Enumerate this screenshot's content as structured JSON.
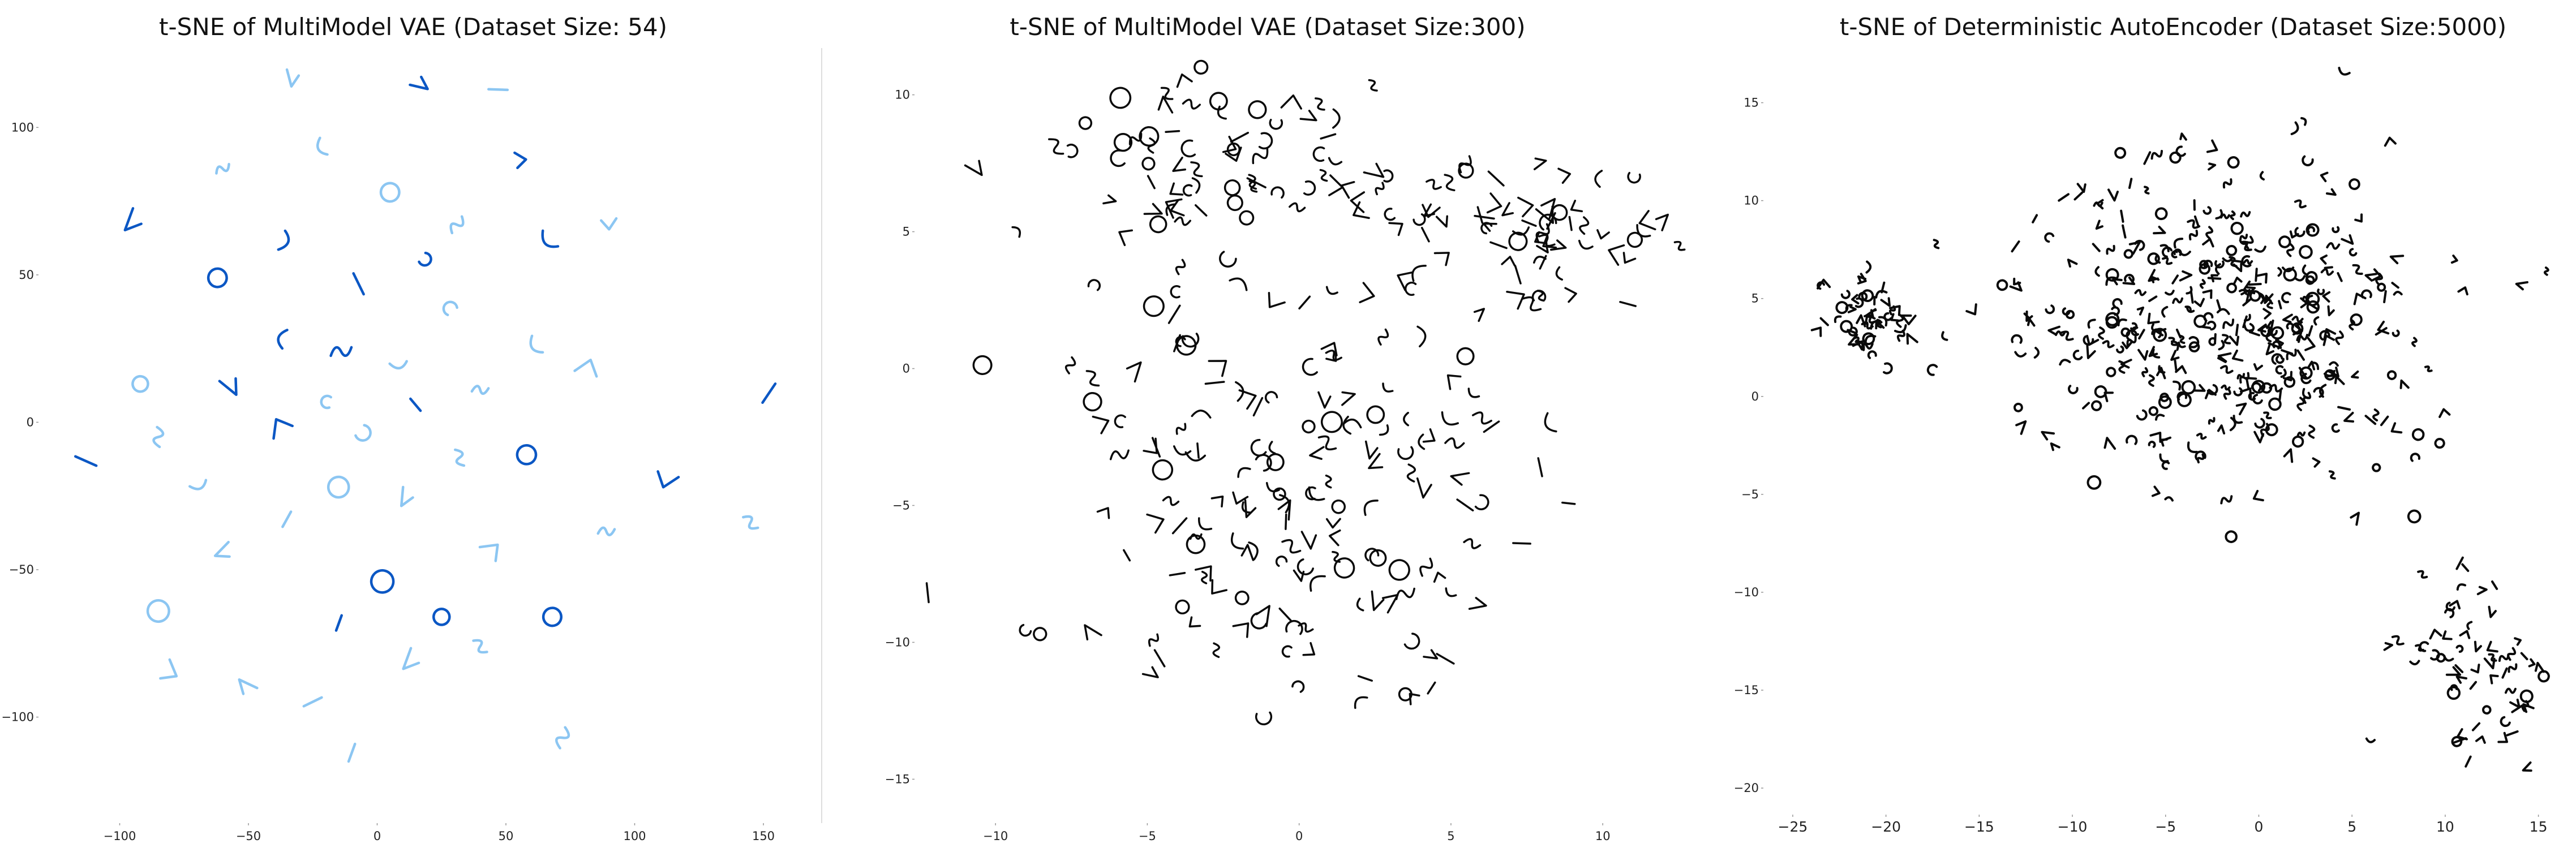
{
  "colors": {
    "background": "#ffffff",
    "divider": "#dddddd",
    "blue_glyph_dark": "#0b57c4",
    "blue_glyph_light": "#8cc6f2",
    "black_glyph": "#0a0a0a",
    "axis_text": "#222222"
  },
  "chart_data": [
    {
      "type": "scatter",
      "title": "t-SNE of MultiModel VAE (Dataset Size: 54)",
      "xlabel": "",
      "ylabel": "",
      "xlim": [
        -130,
        170
      ],
      "ylim": [
        -135,
        125
      ],
      "xticks": [
        -100,
        -50,
        0,
        50,
        100,
        150
      ],
      "yticks": [
        100,
        50,
        0,
        -50,
        -100
      ],
      "xtick_labels": [
        "−100",
        "−50",
        "0",
        "50",
        "100",
        "150"
      ],
      "ytick_labels": [
        "100",
        "50",
        "0",
        "−50",
        "−100"
      ],
      "grid": false,
      "marker_style": "handwritten glyph images (blue)",
      "point_count": 54,
      "points": [
        [
          -34,
          117
        ],
        [
          16,
          114
        ],
        [
          47,
          113
        ],
        [
          -20,
          94
        ],
        [
          -60,
          86
        ],
        [
          56,
          89
        ],
        [
          5,
          78
        ],
        [
          -96,
          69
        ],
        [
          -38,
          62
        ],
        [
          31,
          67
        ],
        [
          68,
          63
        ],
        [
          90,
          67
        ],
        [
          -62,
          49
        ],
        [
          -7,
          47
        ],
        [
          19,
          55
        ],
        [
          28,
          39
        ],
        [
          -35,
          28
        ],
        [
          -14,
          24
        ],
        [
          8,
          21
        ],
        [
          63,
          27
        ],
        [
          82,
          19
        ],
        [
          -92,
          13
        ],
        [
          -58,
          12
        ],
        [
          40,
          11
        ],
        [
          -20,
          7
        ],
        [
          15,
          6
        ],
        [
          -38,
          -1
        ],
        [
          -85,
          -5
        ],
        [
          -5,
          -4
        ],
        [
          32,
          -12
        ],
        [
          58,
          -11
        ],
        [
          -113,
          -13
        ],
        [
          -70,
          -20
        ],
        [
          152,
          10
        ],
        [
          -15,
          -22
        ],
        [
          10,
          -25
        ],
        [
          -35,
          -33
        ],
        [
          89,
          -37
        ],
        [
          145,
          -34
        ],
        [
          -60,
          -43
        ],
        [
          45,
          -43
        ],
        [
          -85,
          -64
        ],
        [
          2,
          -54
        ],
        [
          -15,
          -68
        ],
        [
          25,
          -66
        ],
        [
          68,
          -66
        ],
        [
          -80,
          -85
        ],
        [
          -50,
          -89
        ],
        [
          12,
          -80
        ],
        [
          40,
          -76
        ],
        [
          -25,
          -95
        ],
        [
          72,
          -107
        ],
        [
          -10,
          -112
        ],
        [
          112,
          -20
        ]
      ]
    },
    {
      "type": "scatter",
      "title": "t-SNE of MultiModel VAE (Dataset Size:300)",
      "xlabel": "",
      "ylabel": "",
      "xlim": [
        -12.5,
        13.5
      ],
      "ylim": [
        -16.5,
        11.5
      ],
      "xticks": [
        -10,
        -5,
        0,
        5,
        10
      ],
      "yticks": [
        10,
        5,
        0,
        -5,
        -10,
        -15
      ],
      "xtick_labels": [
        "−10",
        "−5",
        "0",
        "5",
        "10"
      ],
      "ytick_labels": [
        "10",
        "5",
        "0",
        "−5",
        "−10",
        "−15"
      ],
      "grid": false,
      "marker_style": "handwritten glyph images (black)",
      "point_count": 300
    },
    {
      "type": "scatter",
      "title": "t-SNE of Deterministic AutoEncoder (Dataset Size:5000)",
      "xlabel": "",
      "ylabel": "",
      "xlim": [
        -26,
        16.5
      ],
      "ylim": [
        -21.5,
        17.5
      ],
      "xticks": [
        -25,
        -20,
        -15,
        -10,
        -5,
        0,
        5,
        10,
        15
      ],
      "yticks": [
        15,
        10,
        5,
        0,
        -5,
        -10,
        -15,
        -20
      ],
      "xtick_labels": [
        "−25",
        "−20",
        "−15",
        "−10",
        "−5",
        "0",
        "5",
        "10",
        "15"
      ],
      "ytick_labels": [
        "15",
        "10",
        "5",
        "0",
        "−5",
        "−10",
        "−15",
        "−20"
      ],
      "grid": false,
      "marker_style": "handwritten stroke images (black)",
      "point_count": 5000,
      "clusters": [
        {
          "center": [
            -2,
            4
          ],
          "spread": [
            9,
            6.5
          ]
        },
        {
          "center": [
            -21,
            4
          ],
          "spread": [
            2.2,
            2.2
          ]
        },
        {
          "center": [
            11.5,
            -14
          ],
          "spread": [
            3,
            4
          ]
        }
      ]
    }
  ]
}
